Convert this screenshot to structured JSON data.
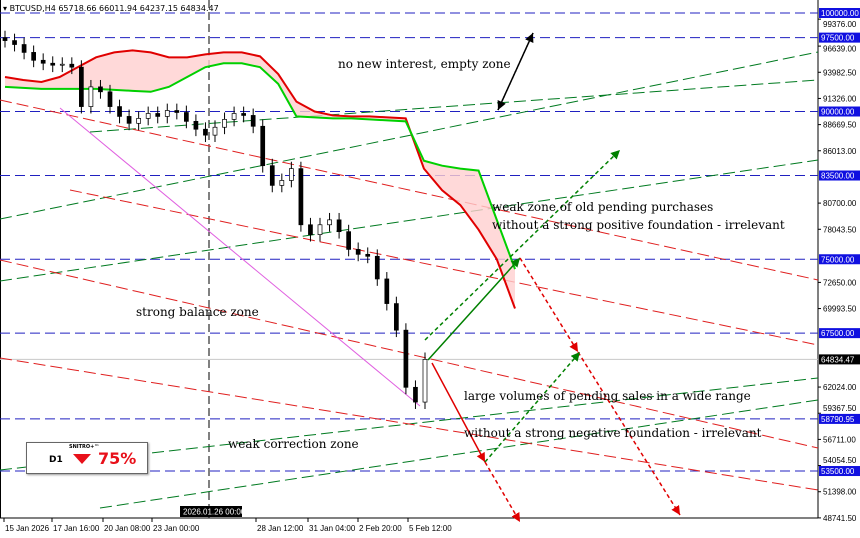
{
  "header": {
    "symbol": "BTCUSD,H4",
    "ohlc": "65718.66 66011.94 64237.15 64834.47"
  },
  "colors": {
    "bull_cloud": "#00d000",
    "bear_cloud": "#e00000",
    "level": "#2020c0",
    "trend_green": "#007a20",
    "trend_red": "#e02020",
    "label_bg": "#1010e0"
  },
  "chart_data": {
    "type": "candlestick",
    "title": "BTCUSD,H4",
    "ylim": [
      48741.5,
      100000
    ],
    "y_ticks": [
      "99376.00",
      "96639.00",
      "93982.50",
      "91326.00",
      "88669.50",
      "86013.00",
      "80700.00",
      "78043.50",
      "72650.00",
      "69993.50",
      "62024.00",
      "59367.50",
      "56711.00",
      "54054.50",
      "51398.00",
      "48741.50"
    ],
    "x_ticks": [
      "15 Jan 2026",
      "17 Jan 16:00",
      "20 Jan 08:00",
      "23 Jan 00:00",
      "28 Jan 12:00",
      "31 Jan 04:00",
      "2 Feb 20:00",
      "5 Feb 12:00"
    ],
    "crosshair_time": "2026.01.26 00:00",
    "current_price": "64834.47",
    "levels": [
      {
        "price": 100000,
        "label": "100000.00"
      },
      {
        "price": 97500,
        "label": "97500.00"
      },
      {
        "price": 90000,
        "label": "90000.00"
      },
      {
        "price": 83500,
        "label": "83500.00"
      },
      {
        "price": 75000,
        "label": "75000.00"
      },
      {
        "price": 67500,
        "label": "67500.00"
      },
      {
        "price": 58790.95,
        "label": "58790.95"
      },
      {
        "price": 53500,
        "label": "53500.00"
      }
    ],
    "close": [
      97200,
      96800,
      96000,
      95200,
      94900,
      94700,
      94800,
      94500,
      90500,
      92500,
      92000,
      90500,
      89500,
      88800,
      89300,
      89800,
      89500,
      90100,
      89900,
      89000,
      88200,
      87600,
      88400,
      89200,
      89800,
      89600,
      88500,
      84500,
      82500,
      83000,
      84200,
      78500,
      77500,
      78500,
      79000,
      77800,
      76000,
      75500,
      75300,
      73000,
      70500,
      67800,
      62000,
      60500,
      64834
    ],
    "cloud_span_a": [
      93500,
      93200,
      93000,
      93500,
      94500,
      95500,
      96000,
      96200,
      96000,
      95500,
      95500,
      95800,
      96000,
      96000,
      95600,
      93800,
      91000,
      90000,
      89600,
      89500,
      89500,
      89400,
      89300,
      84200,
      82000,
      80500,
      78000,
      75000,
      70000
    ],
    "cloud_span_b": [
      92500,
      92400,
      92300,
      92300,
      92300,
      92300,
      92200,
      92100,
      92000,
      92500,
      93500,
      94500,
      94900,
      94900,
      94500,
      92800,
      89500,
      89400,
      89300,
      89300,
      89200,
      89100,
      89000,
      85000,
      84500,
      84200,
      84000,
      79000,
      74000
    ]
  },
  "annotations": {
    "empty_zone": "no new interest, empty zone",
    "weak_purchases_1": "weak zone of old pending purchases",
    "weak_purchases_2": "without a strong positive foundation - irrelevant",
    "balance": "strong balance zone",
    "sales_1": "large volumes of pending sales in a wide range",
    "sales_2": "without a strong negative foundation - irrelevant",
    "correction": "weak correction zone"
  },
  "badge": {
    "timeframe": "D1",
    "name": "SNITRO+™",
    "direction": "down",
    "percent": "75%"
  }
}
